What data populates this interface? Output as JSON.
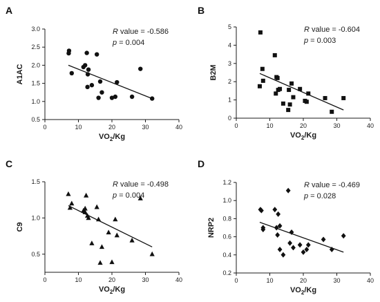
{
  "chart_data": [
    {
      "type": "scatter",
      "panel": "A",
      "xlabel": "VO2/Kg",
      "ylabel": "A1AC",
      "xlim": [
        0,
        40
      ],
      "ylim": [
        0.5,
        3.0
      ],
      "xticks": [
        0,
        10,
        20,
        30,
        40
      ],
      "yticks": [
        0.5,
        1.0,
        1.5,
        2.0,
        2.5,
        3.0
      ],
      "ytick_labels": [
        "0.5",
        "1.0",
        "1.5",
        "2.0",
        "2.5",
        "3.0"
      ],
      "marker": "circle",
      "r_label": "R value = -0.586",
      "p_label": "p = 0.004",
      "trendline": [
        [
          7,
          2.0
        ],
        [
          32,
          1.08
        ]
      ],
      "points": [
        [
          7.2,
          2.4
        ],
        [
          7.1,
          2.33
        ],
        [
          8.0,
          1.78
        ],
        [
          11.5,
          1.95
        ],
        [
          12.0,
          2.0
        ],
        [
          12.5,
          2.34
        ],
        [
          12.8,
          1.75
        ],
        [
          13.0,
          1.88
        ],
        [
          12.7,
          1.4
        ],
        [
          14.0,
          1.45
        ],
        [
          15.5,
          2.3
        ],
        [
          16.0,
          1.1
        ],
        [
          16.5,
          1.55
        ],
        [
          17.0,
          1.25
        ],
        [
          20.0,
          1.1
        ],
        [
          21.5,
          1.53
        ],
        [
          21.0,
          1.13
        ],
        [
          26.0,
          1.13
        ],
        [
          28.5,
          1.9
        ],
        [
          32.0,
          1.08
        ]
      ]
    },
    {
      "type": "scatter",
      "panel": "B",
      "xlabel": "VO2/Kg",
      "ylabel": "B2M",
      "xlim": [
        0,
        40
      ],
      "ylim": [
        0,
        5
      ],
      "xticks": [
        0,
        10,
        20,
        30,
        40
      ],
      "yticks": [
        0,
        1,
        2,
        3,
        4,
        5
      ],
      "ytick_labels": [
        "0",
        "1",
        "2",
        "3",
        "4",
        "5"
      ],
      "marker": "square",
      "r_label": "R value = -0.604",
      "p_label": "p = 0.003",
      "trendline": [
        [
          7,
          2.45
        ],
        [
          32,
          0.45
        ]
      ],
      "points": [
        [
          7.2,
          4.7
        ],
        [
          7.8,
          2.7
        ],
        [
          8.0,
          2.05
        ],
        [
          7.0,
          1.75
        ],
        [
          11.5,
          3.45
        ],
        [
          12.0,
          2.25
        ],
        [
          12.3,
          2.2
        ],
        [
          12.5,
          1.55
        ],
        [
          11.8,
          1.35
        ],
        [
          13.0,
          1.6
        ],
        [
          14.0,
          0.8
        ],
        [
          15.5,
          0.45
        ],
        [
          15.7,
          1.55
        ],
        [
          16.0,
          0.75
        ],
        [
          17.0,
          1.15
        ],
        [
          16.5,
          1.9
        ],
        [
          19.0,
          1.6
        ],
        [
          20.5,
          0.95
        ],
        [
          21.0,
          0.9
        ],
        [
          21.5,
          1.35
        ],
        [
          26.5,
          1.1
        ],
        [
          28.5,
          0.35
        ],
        [
          32.0,
          1.1
        ]
      ]
    },
    {
      "type": "scatter",
      "panel": "C",
      "xlabel": "VO2/Kg",
      "ylabel": "C9",
      "xlim": [
        0,
        40
      ],
      "ylim": [
        0.25,
        1.5
      ],
      "xticks": [
        0,
        10,
        20,
        30,
        40
      ],
      "yticks": [
        0.5,
        1.0,
        1.5
      ],
      "ytick_labels": [
        "0.5",
        "1.0",
        "1.5"
      ],
      "marker": "triangle",
      "r_label": "R value = -0.498",
      "p_label": "p = 0.004",
      "trendline": [
        [
          7,
          1.17
        ],
        [
          32,
          0.6
        ]
      ],
      "points": [
        [
          7.0,
          1.33
        ],
        [
          7.5,
          1.14
        ],
        [
          8.0,
          1.2
        ],
        [
          11.5,
          1.1
        ],
        [
          12.0,
          1.13
        ],
        [
          12.0,
          1.08
        ],
        [
          12.3,
          1.31
        ],
        [
          12.7,
          1.03
        ],
        [
          13.0,
          1.0
        ],
        [
          14.0,
          0.65
        ],
        [
          15.5,
          1.15
        ],
        [
          16.0,
          0.98
        ],
        [
          16.5,
          0.38
        ],
        [
          17.0,
          0.6
        ],
        [
          19.0,
          0.8
        ],
        [
          20.0,
          0.39
        ],
        [
          21.0,
          0.98
        ],
        [
          21.5,
          0.76
        ],
        [
          26.0,
          0.69
        ],
        [
          28.5,
          1.27
        ],
        [
          32.0,
          0.5
        ]
      ]
    },
    {
      "type": "scatter",
      "panel": "D",
      "xlabel": "VO2/Kg",
      "ylabel": "NRP2",
      "xlim": [
        0,
        40
      ],
      "ylim": [
        0.2,
        1.2
      ],
      "xticks": [
        0,
        10,
        20,
        30,
        40
      ],
      "yticks": [
        0.2,
        0.4,
        0.6,
        0.8,
        1.0,
        1.2
      ],
      "ytick_labels": [
        "0.2",
        "0.4",
        "0.6",
        "0.8",
        "1.0",
        "1.2"
      ],
      "marker": "diamond",
      "r_label": "R value = -0.469",
      "p_label": "p = 0.028",
      "trendline": [
        [
          7,
          0.76
        ],
        [
          32,
          0.43
        ]
      ],
      "points": [
        [
          7.2,
          0.9
        ],
        [
          7.5,
          0.89
        ],
        [
          8.0,
          0.7
        ],
        [
          8.0,
          0.68
        ],
        [
          11.5,
          0.9
        ],
        [
          12.0,
          0.7
        ],
        [
          12.5,
          0.85
        ],
        [
          12.3,
          0.62
        ],
        [
          13.0,
          0.72
        ],
        [
          13.0,
          0.46
        ],
        [
          14.0,
          0.4
        ],
        [
          15.5,
          1.11
        ],
        [
          16.0,
          0.53
        ],
        [
          16.5,
          0.65
        ],
        [
          17.0,
          0.48
        ],
        [
          19.0,
          0.51
        ],
        [
          20.0,
          0.43
        ],
        [
          21.0,
          0.46
        ],
        [
          21.5,
          0.51
        ],
        [
          26.0,
          0.57
        ],
        [
          28.5,
          0.46
        ],
        [
          32.0,
          0.61
        ]
      ]
    }
  ]
}
